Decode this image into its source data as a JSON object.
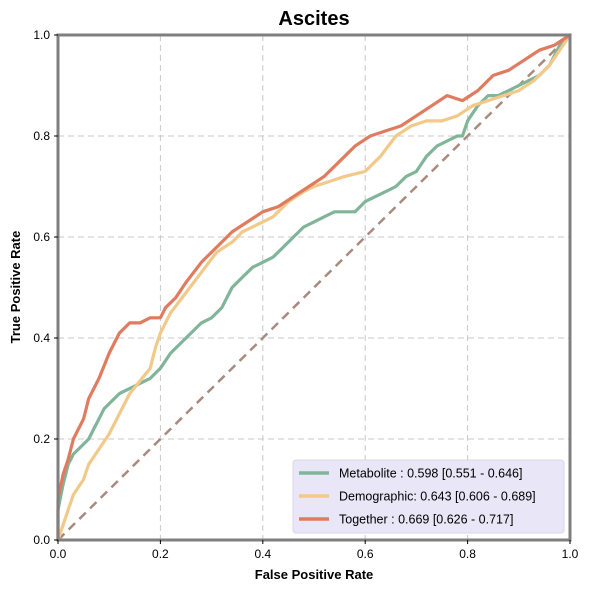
{
  "chart_data": {
    "type": "line",
    "title": "Ascites",
    "xlabel": "False Positive Rate",
    "ylabel": "True Positive Rate",
    "xlim": [
      0,
      1
    ],
    "ylim": [
      0,
      1
    ],
    "x_ticks": [
      "0.0",
      "0.2",
      "0.4",
      "0.6",
      "0.8",
      "1.0"
    ],
    "y_ticks": [
      "0.0",
      "0.2",
      "0.4",
      "0.6",
      "0.8",
      "1.0"
    ],
    "grid": true,
    "legend_position": "bottom-right",
    "diagonal": {
      "x": [
        0,
        1
      ],
      "y": [
        0,
        1
      ],
      "color": "#a98b7e",
      "style": "dashed"
    },
    "series": [
      {
        "name": "Metabolite",
        "legend_label": "Metabolite     : 0.598 [0.551 - 0.646]",
        "color": "#80b59a",
        "x": [
          0.0,
          0.0,
          0.01,
          0.02,
          0.03,
          0.05,
          0.06,
          0.07,
          0.08,
          0.09,
          0.1,
          0.12,
          0.14,
          0.16,
          0.18,
          0.2,
          0.22,
          0.24,
          0.26,
          0.28,
          0.3,
          0.32,
          0.34,
          0.36,
          0.38,
          0.4,
          0.42,
          0.44,
          0.46,
          0.48,
          0.5,
          0.52,
          0.54,
          0.56,
          0.58,
          0.6,
          0.62,
          0.64,
          0.66,
          0.68,
          0.7,
          0.72,
          0.74,
          0.76,
          0.78,
          0.79,
          0.8,
          0.82,
          0.84,
          0.86,
          0.88,
          0.9,
          0.92,
          0.94,
          0.96,
          0.98,
          1.0
        ],
        "y": [
          0.0,
          0.06,
          0.11,
          0.15,
          0.17,
          0.19,
          0.2,
          0.22,
          0.24,
          0.26,
          0.27,
          0.29,
          0.3,
          0.31,
          0.32,
          0.34,
          0.37,
          0.39,
          0.41,
          0.43,
          0.44,
          0.46,
          0.5,
          0.52,
          0.54,
          0.55,
          0.56,
          0.58,
          0.6,
          0.62,
          0.63,
          0.64,
          0.65,
          0.65,
          0.65,
          0.67,
          0.68,
          0.69,
          0.7,
          0.72,
          0.73,
          0.76,
          0.78,
          0.79,
          0.8,
          0.8,
          0.83,
          0.86,
          0.88,
          0.88,
          0.89,
          0.9,
          0.91,
          0.92,
          0.94,
          0.98,
          1.0
        ]
      },
      {
        "name": "Demographic",
        "legend_label": "Demographic: 0.643 [0.606 - 0.689]",
        "color": "#f2c989",
        "x": [
          0.0,
          0.01,
          0.02,
          0.03,
          0.05,
          0.06,
          0.08,
          0.1,
          0.12,
          0.14,
          0.18,
          0.19,
          0.2,
          0.22,
          0.25,
          0.28,
          0.31,
          0.34,
          0.36,
          0.38,
          0.4,
          0.42,
          0.45,
          0.48,
          0.5,
          0.53,
          0.56,
          0.6,
          0.63,
          0.66,
          0.69,
          0.72,
          0.75,
          0.78,
          0.81,
          0.84,
          0.87,
          0.9,
          0.93,
          0.96,
          1.0
        ],
        "y": [
          0.0,
          0.03,
          0.06,
          0.09,
          0.12,
          0.15,
          0.18,
          0.21,
          0.25,
          0.29,
          0.34,
          0.38,
          0.41,
          0.45,
          0.49,
          0.53,
          0.57,
          0.59,
          0.61,
          0.62,
          0.63,
          0.64,
          0.67,
          0.69,
          0.7,
          0.71,
          0.72,
          0.73,
          0.76,
          0.8,
          0.82,
          0.83,
          0.83,
          0.84,
          0.86,
          0.87,
          0.88,
          0.89,
          0.91,
          0.94,
          1.0
        ]
      },
      {
        "name": "Together",
        "legend_label": "Together        : 0.669 [0.626 - 0.717]",
        "color": "#e07b5f",
        "x": [
          0.0,
          0.0,
          0.01,
          0.02,
          0.03,
          0.05,
          0.06,
          0.08,
          0.1,
          0.12,
          0.14,
          0.16,
          0.18,
          0.2,
          0.21,
          0.23,
          0.25,
          0.28,
          0.31,
          0.34,
          0.37,
          0.4,
          0.43,
          0.46,
          0.49,
          0.52,
          0.55,
          0.58,
          0.61,
          0.64,
          0.67,
          0.7,
          0.73,
          0.76,
          0.79,
          0.82,
          0.85,
          0.88,
          0.91,
          0.94,
          0.97,
          1.0
        ],
        "y": [
          0.0,
          0.08,
          0.13,
          0.16,
          0.2,
          0.24,
          0.28,
          0.32,
          0.37,
          0.41,
          0.43,
          0.43,
          0.44,
          0.44,
          0.46,
          0.48,
          0.51,
          0.55,
          0.58,
          0.61,
          0.63,
          0.65,
          0.66,
          0.68,
          0.7,
          0.72,
          0.75,
          0.78,
          0.8,
          0.81,
          0.82,
          0.84,
          0.86,
          0.88,
          0.87,
          0.89,
          0.92,
          0.93,
          0.95,
          0.97,
          0.98,
          1.0
        ]
      }
    ]
  }
}
